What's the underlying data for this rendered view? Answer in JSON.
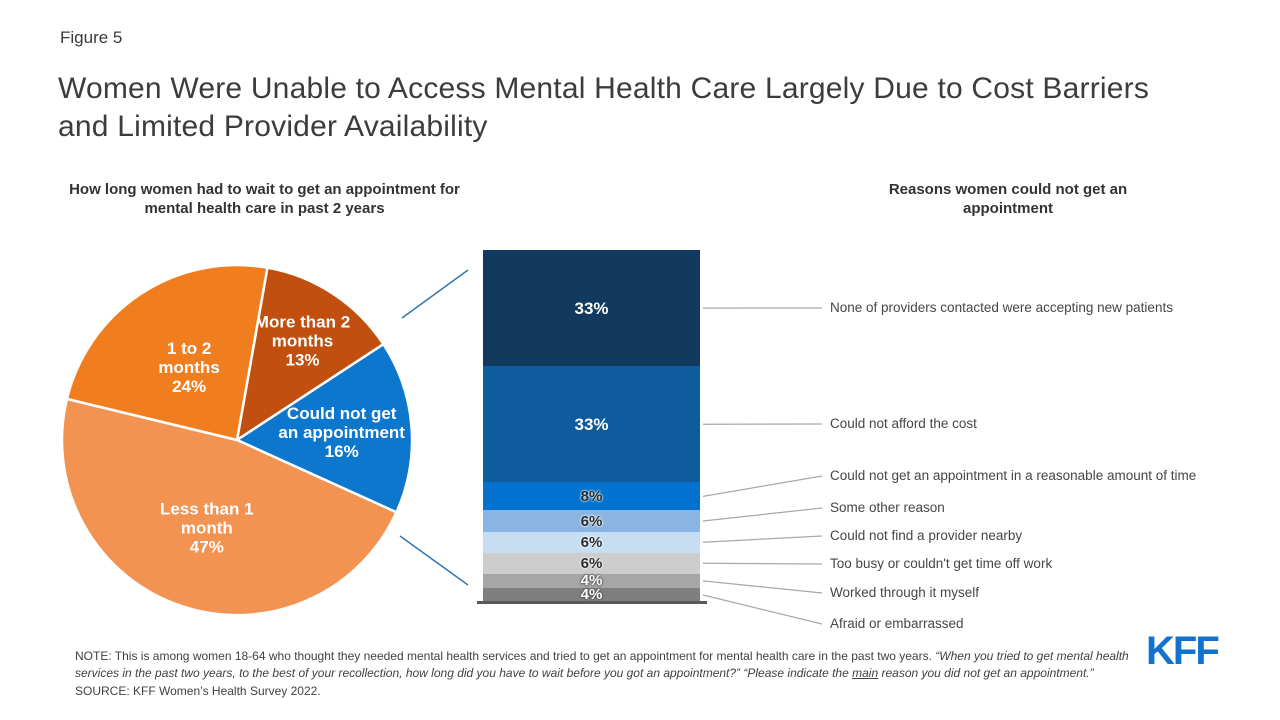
{
  "figure_label": "Figure 5",
  "title": "Women Were Unable to Access Mental Health Care Largely Due to Cost Barriers and Limited Provider Availability",
  "footer": {
    "note_prefix": "NOTE: This is among women 18-64 who thought they needed mental health services and tried to get an appointment for mental health care in the past two years. ",
    "quote1": "“When you tried to get mental health services in the past two years, to the best of your recollection, how long did you have to wait before you got an appointment?” “Please indicate the ",
    "underlined_word": "main",
    "quote2": " reason you did not get an appointment.”",
    "source": "SOURCE: KFF Women’s Health Survey 2022."
  },
  "logo_text": "KFF",
  "chart_data": [
    {
      "type": "pie",
      "title": "How long women had to wait to get an appointment for mental health care in past 2 years",
      "start_angle_deg": 10,
      "direction": "clockwise",
      "legend_position": "inside",
      "slices": [
        {
          "label": "More than 2 months",
          "value": 13,
          "color": "#c04f10",
          "label_lines": [
            "More than 2",
            "months",
            "13%"
          ]
        },
        {
          "label": "Could not get an appointment",
          "value": 16,
          "color": "#0d76cd",
          "label_lines": [
            "Could not get",
            "an appointment",
            "16%"
          ]
        },
        {
          "label": "Less than 1 month",
          "value": 47,
          "color": "#f29352",
          "label_lines": [
            "Less than 1",
            "month",
            "47%"
          ]
        },
        {
          "label": "1 to 2 months",
          "value": 24,
          "color": "#f07e1f",
          "label_lines": [
            "1 to 2",
            "months",
            "24%"
          ]
        }
      ]
    },
    {
      "type": "bar",
      "subtype": "stacked-single-column",
      "title": "Reasons women could not get an appointment",
      "total": 100,
      "connector_color": "#2e75b6",
      "segments": [
        {
          "label": "None of providers contacted were accepting new patients",
          "value": 33,
          "color": "#123a5e",
          "text_color": "#ffffff"
        },
        {
          "label": "Could not afford the cost",
          "value": 33,
          "color": "#0e5b9d",
          "text_color": "#ffffff"
        },
        {
          "label": "Could not get an appointment in a reasonable amount of time",
          "value": 8,
          "color": "#0473cf",
          "text_color": "#2b2b2b"
        },
        {
          "label": "Some other reason",
          "value": 6,
          "color": "#8ab5e2",
          "text_color": "#2b2b2b"
        },
        {
          "label": "Could not find a provider nearby",
          "value": 6,
          "color": "#c7def2",
          "text_color": "#2b2b2b"
        },
        {
          "label": "Too busy or couldn't get time off work",
          "value": 6,
          "color": "#cdcdcd",
          "text_color": "#2b2b2b"
        },
        {
          "label": "Worked through it myself",
          "value": 4,
          "color": "#a6a6a6",
          "text_color": "#ffffff"
        },
        {
          "label": "Afraid or embarrassed",
          "value": 4,
          "color": "#7f7f7f",
          "text_color": "#ffffff"
        }
      ]
    }
  ]
}
